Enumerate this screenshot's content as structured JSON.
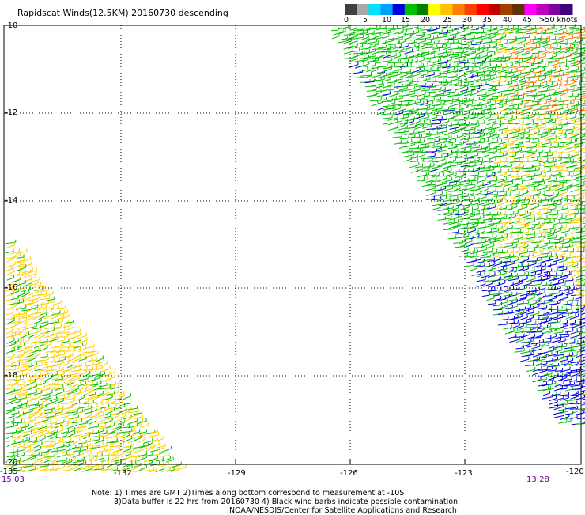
{
  "title": "Rapidscat Winds(12.5KM) 20160730 descending",
  "colorbar": {
    "labels": [
      "0",
      "5",
      "10",
      "15",
      "20",
      "25",
      "30",
      "35",
      "40",
      "45",
      ">50 knots"
    ],
    "colors": [
      "#404040",
      "#a8a8a8",
      "#00e0ff",
      "#00a0ff",
      "#0000e0",
      "#00c000",
      "#008000",
      "#ffff00",
      "#ffc000",
      "#ff8000",
      "#ff4000",
      "#ff0000",
      "#c00000",
      "#a04000",
      "#603000",
      "#ff00ff",
      "#c000c0",
      "#8000a0",
      "#400080"
    ]
  },
  "map": {
    "lon_range": [
      -135,
      -120
    ],
    "lat_range": [
      -20,
      -10
    ],
    "lon_labels": [
      "-135",
      "-132",
      "-129",
      "-126",
      "-123",
      "-120"
    ],
    "lat_labels": [
      "-10",
      "-12",
      "-14",
      "-16",
      "-18",
      "-20"
    ],
    "grid_lines": "dotted"
  },
  "times": {
    "left": "15:03",
    "right": "13:28"
  },
  "notes": [
    "Note: 1) Times are GMT 2)Times along bottom correspond to measurement at -10S",
    "3)Data buffer is 22 hrs from 20160730 4) Black wind barbs indicate possible contamination",
    "NOAA/NESDIS/Center for Satellite Applications and Research"
  ],
  "barb_colors": {
    "blue": "#0000e0",
    "green": "#00c000",
    "yellow": "#ffd000",
    "orange": "#ff8000"
  }
}
